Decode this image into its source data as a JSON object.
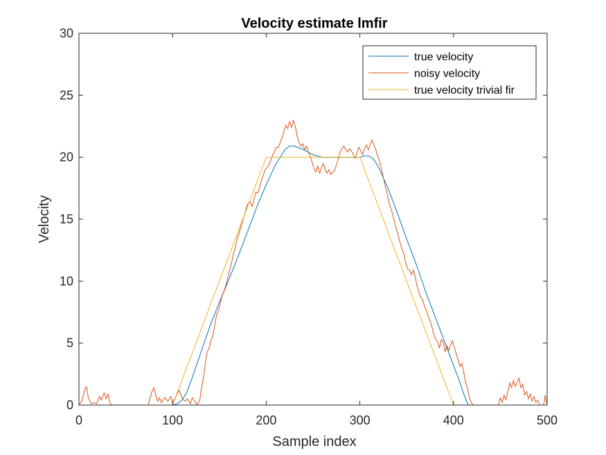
{
  "chart_data": {
    "type": "line",
    "title": "Velocity estimate lmfir",
    "xlabel": "Sample index",
    "ylabel": "Velocity",
    "xlim": [
      0,
      500
    ],
    "ylim": [
      0,
      30
    ],
    "xticks": [
      0,
      100,
      200,
      300,
      400,
      500
    ],
    "yticks": [
      0,
      5,
      10,
      15,
      20,
      25,
      30
    ],
    "grid": false,
    "legend_position": "top-right",
    "series": [
      {
        "name": "true velocity",
        "color": "#0072BD",
        "points": [
          [
            0,
            0
          ],
          [
            100,
            0
          ],
          [
            105,
            0.1
          ],
          [
            110,
            0.4
          ],
          [
            115,
            1
          ],
          [
            120,
            2
          ],
          [
            130,
            4.2
          ],
          [
            140,
            6.4
          ],
          [
            150,
            8.3
          ],
          [
            160,
            10.1
          ],
          [
            170,
            12
          ],
          [
            180,
            14
          ],
          [
            190,
            16
          ],
          [
            200,
            17.8
          ],
          [
            210,
            19.4
          ],
          [
            220,
            20.6
          ],
          [
            225,
            20.9
          ],
          [
            230,
            20.9
          ],
          [
            240,
            20.6
          ],
          [
            250,
            20.2
          ],
          [
            260,
            20
          ],
          [
            270,
            20
          ],
          [
            280,
            20
          ],
          [
            290,
            20
          ],
          [
            300,
            20
          ],
          [
            305,
            20.1
          ],
          [
            310,
            20.1
          ],
          [
            315,
            19.8
          ],
          [
            320,
            19.2
          ],
          [
            330,
            17.5
          ],
          [
            340,
            15.5
          ],
          [
            350,
            13.4
          ],
          [
            360,
            11.4
          ],
          [
            370,
            9.2
          ],
          [
            380,
            7.2
          ],
          [
            390,
            5.2
          ],
          [
            400,
            3.2
          ],
          [
            405,
            2.2
          ],
          [
            410,
            1.1
          ],
          [
            414,
            0.3
          ],
          [
            416,
            0
          ],
          [
            500,
            0
          ]
        ]
      },
      {
        "name": "noisy velocity",
        "color": "#D95319",
        "points": [
          [
            0,
            0
          ],
          [
            3,
            0.3
          ],
          [
            6,
            1.2
          ],
          [
            8,
            1.5
          ],
          [
            10,
            0.6
          ],
          [
            13,
            0.1
          ],
          [
            16,
            0.2
          ],
          [
            19,
            0.1
          ],
          [
            22,
            0.7
          ],
          [
            24,
            0.4
          ],
          [
            27,
            1
          ],
          [
            29,
            0.5
          ],
          [
            31,
            0.9
          ],
          [
            33,
            0.2
          ],
          [
            35,
            0
          ],
          [
            74,
            0
          ],
          [
            76,
            0.6
          ],
          [
            78,
            1.1
          ],
          [
            80,
            1.4
          ],
          [
            82,
            0.8
          ],
          [
            84,
            0.3
          ],
          [
            86,
            0.6
          ],
          [
            88,
            0.2
          ],
          [
            92,
            0.6
          ],
          [
            95,
            0.3
          ],
          [
            98,
            0.7
          ],
          [
            100,
            0.2
          ],
          [
            102,
            0.5
          ],
          [
            105,
            0.9
          ],
          [
            107,
            1.2
          ],
          [
            110,
            0.6
          ],
          [
            113,
            0.3
          ],
          [
            116,
            0.5
          ],
          [
            119,
            0.1
          ],
          [
            121,
            0.6
          ],
          [
            124,
            0.3
          ],
          [
            126,
            0
          ],
          [
            129,
            0.4
          ],
          [
            131,
            1.4
          ],
          [
            133,
            2.2
          ],
          [
            135,
            3.4
          ],
          [
            137,
            4.3
          ],
          [
            139,
            4.6
          ],
          [
            141,
            5.2
          ],
          [
            143,
            5.6
          ],
          [
            145,
            6.4
          ],
          [
            147,
            7.3
          ],
          [
            149,
            7.6
          ],
          [
            151,
            8.2
          ],
          [
            153,
            8.9
          ],
          [
            155,
            9.2
          ],
          [
            157,
            9.7
          ],
          [
            159,
            10.3
          ],
          [
            161,
            10.9
          ],
          [
            163,
            11.5
          ],
          [
            165,
            12.2
          ],
          [
            167,
            12.7
          ],
          [
            169,
            13.4
          ],
          [
            171,
            13.9
          ],
          [
            173,
            14.4
          ],
          [
            175,
            14.9
          ],
          [
            177,
            15.4
          ],
          [
            179,
            16
          ],
          [
            181,
            16.3
          ],
          [
            183,
            16.4
          ],
          [
            185,
            16
          ],
          [
            187,
            16.6
          ],
          [
            189,
            17.2
          ],
          [
            191,
            17.1
          ],
          [
            193,
            17.6
          ],
          [
            195,
            18.1
          ],
          [
            197,
            18.6
          ],
          [
            199,
            19
          ],
          [
            201,
            19.2
          ],
          [
            203,
            19.4
          ],
          [
            205,
            19.8
          ],
          [
            207,
            20.2
          ],
          [
            209,
            20.5
          ],
          [
            211,
            20.8
          ],
          [
            213,
            20.8
          ],
          [
            215,
            21.2
          ],
          [
            217,
            21.6
          ],
          [
            219,
            22.1
          ],
          [
            221,
            22.6
          ],
          [
            223,
            22.3
          ],
          [
            225,
            22.9
          ],
          [
            227,
            22.4
          ],
          [
            229,
            23
          ],
          [
            231,
            22.5
          ],
          [
            233,
            21.7
          ],
          [
            235,
            21.2
          ],
          [
            237,
            20.9
          ],
          [
            239,
            21.1
          ],
          [
            241,
            20.6
          ],
          [
            243,
            20.9
          ],
          [
            245,
            20.4
          ],
          [
            247,
            20.1
          ],
          [
            249,
            19.6
          ],
          [
            251,
            19.1
          ],
          [
            253,
            18.8
          ],
          [
            255,
            19.3
          ],
          [
            257,
            18.7
          ],
          [
            259,
            19.2
          ],
          [
            261,
            19.5
          ],
          [
            263,
            19
          ],
          [
            265,
            18.7
          ],
          [
            267,
            19
          ],
          [
            269,
            18.6
          ],
          [
            271,
            18.8
          ],
          [
            273,
            18.9
          ],
          [
            275,
            19.4
          ],
          [
            277,
            19.9
          ],
          [
            279,
            20.4
          ],
          [
            281,
            20.7
          ],
          [
            283,
            20.9
          ],
          [
            285,
            20.6
          ],
          [
            287,
            20.4
          ],
          [
            289,
            20.7
          ],
          [
            291,
            20.5
          ],
          [
            293,
            20.2
          ],
          [
            295,
            19.9
          ],
          [
            297,
            20.4
          ],
          [
            299,
            20.8
          ],
          [
            301,
            20.5
          ],
          [
            303,
            20.2
          ],
          [
            305,
            20.7
          ],
          [
            307,
            21
          ],
          [
            309,
            20.6
          ],
          [
            311,
            21
          ],
          [
            313,
            21.4
          ],
          [
            315,
            21
          ],
          [
            317,
            20.6
          ],
          [
            319,
            20.1
          ],
          [
            321,
            19.7
          ],
          [
            323,
            19.1
          ],
          [
            325,
            18.4
          ],
          [
            327,
            17.7
          ],
          [
            329,
            17.1
          ],
          [
            331,
            16.4
          ],
          [
            333,
            15.9
          ],
          [
            335,
            15.4
          ],
          [
            337,
            14.8
          ],
          [
            339,
            14.2
          ],
          [
            341,
            13.7
          ],
          [
            343,
            13.1
          ],
          [
            345,
            12.6
          ],
          [
            347,
            12.2
          ],
          [
            349,
            11.5
          ],
          [
            351,
            11
          ],
          [
            353,
            10.9
          ],
          [
            355,
            10.5
          ],
          [
            357,
            10.9
          ],
          [
            359,
            10.4
          ],
          [
            361,
            9.6
          ],
          [
            363,
            9.1
          ],
          [
            365,
            8.7
          ],
          [
            367,
            8.5
          ],
          [
            369,
            8
          ],
          [
            371,
            7.6
          ],
          [
            373,
            7.2
          ],
          [
            375,
            6.8
          ],
          [
            377,
            6.3
          ],
          [
            379,
            5.7
          ],
          [
            381,
            5.3
          ],
          [
            383,
            5.1
          ],
          [
            385,
            4.6
          ],
          [
            387,
            5.3
          ],
          [
            389,
            5.1
          ],
          [
            391,
            4.3
          ],
          [
            393,
            4.8
          ],
          [
            395,
            4.4
          ],
          [
            397,
            4.9
          ],
          [
            399,
            5.2
          ],
          [
            401,
            4.6
          ],
          [
            403,
            4.1
          ],
          [
            405,
            3.6
          ],
          [
            407,
            3.1
          ],
          [
            409,
            3.4
          ],
          [
            411,
            2.6
          ],
          [
            413,
            1.8
          ],
          [
            415,
            1.3
          ],
          [
            417,
            0.6
          ],
          [
            419,
            0.2
          ],
          [
            421,
            0
          ],
          [
            448,
            0
          ],
          [
            450,
            0.6
          ],
          [
            452,
            0.2
          ],
          [
            454,
            0.8
          ],
          [
            456,
            0.4
          ],
          [
            458,
            1.1
          ],
          [
            460,
            1.8
          ],
          [
            462,
            1.4
          ],
          [
            464,
            2
          ],
          [
            466,
            1.5
          ],
          [
            468,
            1.8
          ],
          [
            470,
            2.2
          ],
          [
            472,
            1.4
          ],
          [
            474,
            1.7
          ],
          [
            476,
            0.8
          ],
          [
            478,
            1.1
          ],
          [
            480,
            0.5
          ],
          [
            482,
            0.9
          ],
          [
            484,
            0.3
          ],
          [
            486,
            0.7
          ],
          [
            488,
            0.2
          ],
          [
            490,
            0.4
          ],
          [
            492,
            0
          ],
          [
            496,
            0
          ],
          [
            497,
            0.3
          ],
          [
            498,
            0.8
          ],
          [
            499,
            0.3
          ],
          [
            500,
            0
          ]
        ]
      },
      {
        "name": "true velocity trivial fir",
        "color": "#EDB120",
        "points": [
          [
            0,
            0
          ],
          [
            100,
            0
          ],
          [
            200,
            20
          ],
          [
            300,
            20
          ],
          [
            400,
            0
          ],
          [
            500,
            0
          ]
        ]
      }
    ]
  }
}
